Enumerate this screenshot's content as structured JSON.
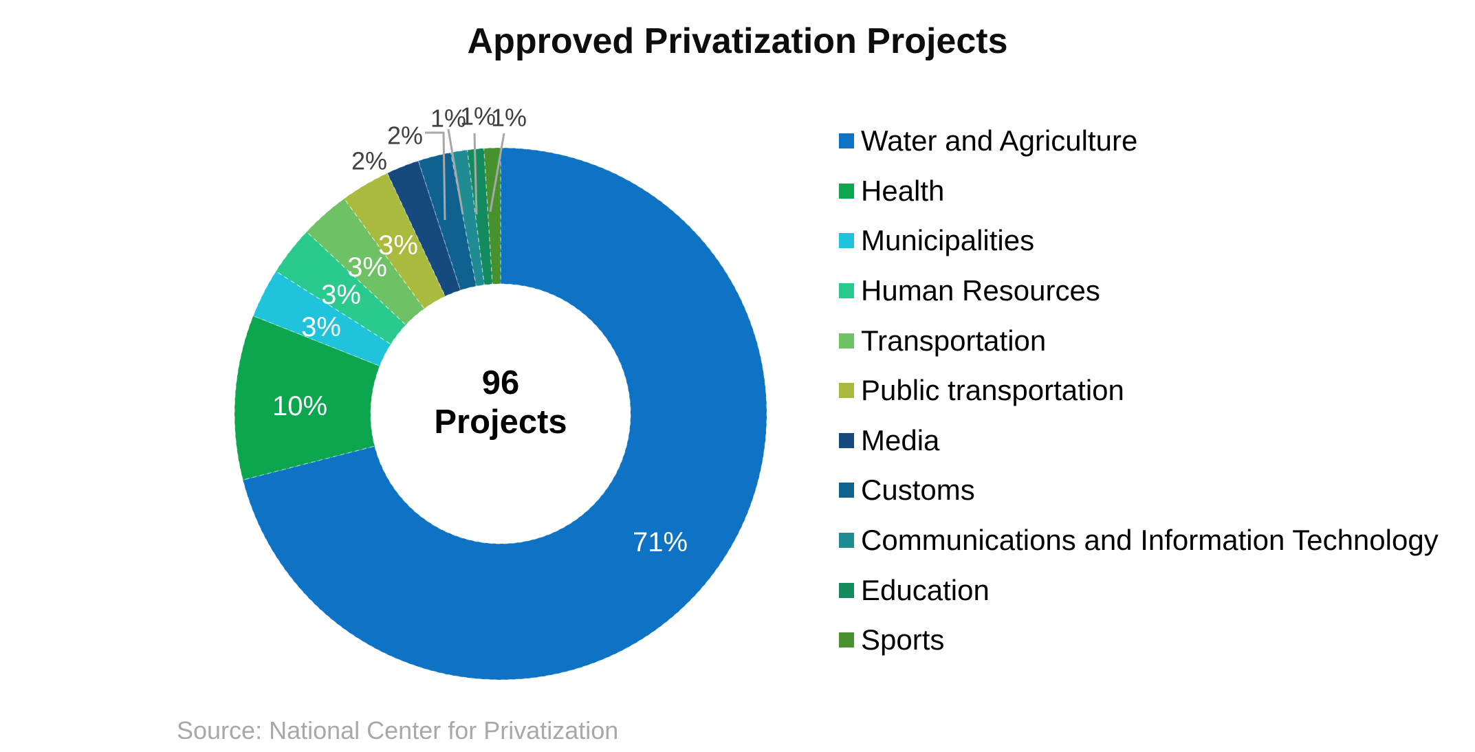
{
  "title": "Approved Privatization Projects",
  "source": "Source: National Center for Privatization",
  "center_label": {
    "line1": "96",
    "line2": "Projects"
  },
  "chart_data": {
    "type": "pie",
    "subtype": "donut",
    "title": "Approved Privatization Projects",
    "center_text": "96 Projects",
    "total_projects": 96,
    "value_unit": "percent",
    "start_angle_deg": 0,
    "direction": "clockwise",
    "legend_position": "right",
    "grid": false,
    "categories": [
      "Water and Agriculture",
      "Health",
      "Municipalities",
      "Human Resources",
      "Transportation",
      "Public transportation",
      "Media",
      "Customs",
      "Communications and Information Technology",
      "Education",
      "Sports"
    ],
    "values": [
      71,
      10,
      3,
      3,
      3,
      3,
      2,
      2,
      1,
      1,
      1
    ],
    "labels": [
      "71%",
      "10%",
      "3%",
      "3%",
      "3%",
      "3%",
      "2%",
      "2%",
      "1%",
      "1%",
      "1%"
    ],
    "colors": [
      "#0E73C4",
      "#0CA64F",
      "#1FC3DC",
      "#2AC98E",
      "#6FC166",
      "#AABA3F",
      "#16497D",
      "#0F6290",
      "#1F8C94",
      "#148B5E",
      "#48912F"
    ],
    "label_colors": {
      "inside": "#ffffff",
      "outside": "#404040"
    },
    "leader_line_color": "#A7A7A7"
  }
}
